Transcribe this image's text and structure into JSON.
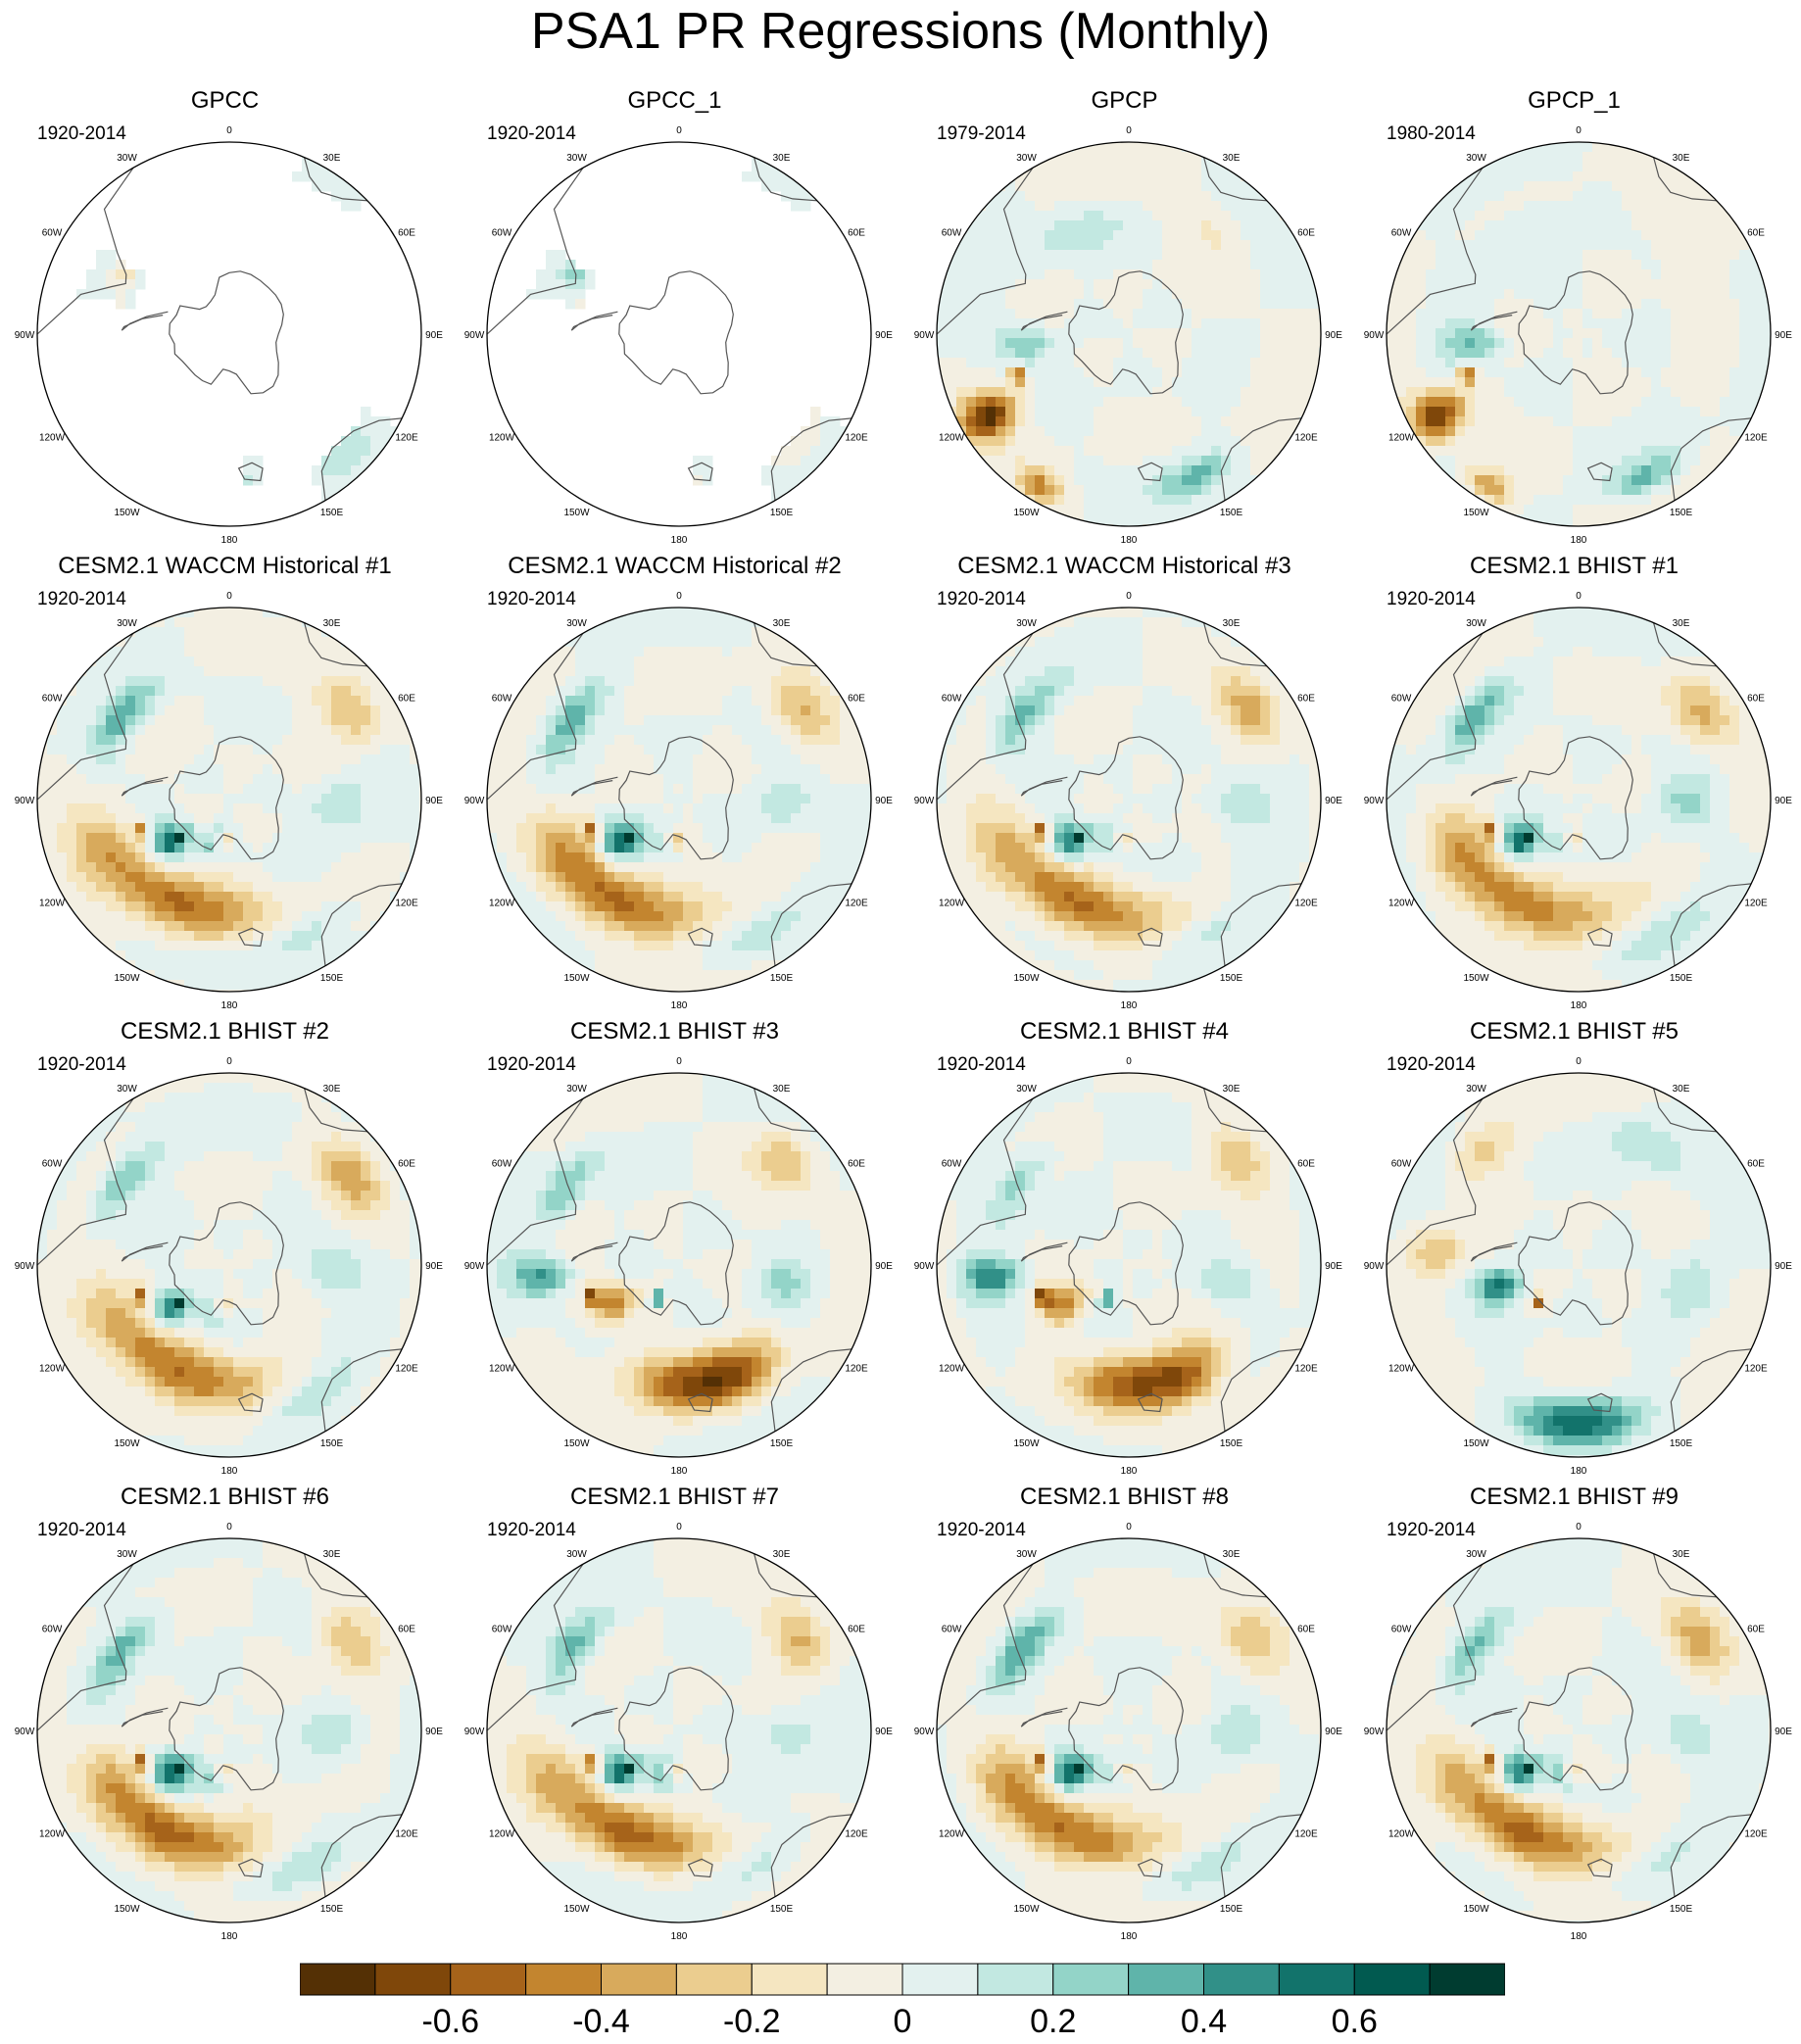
{
  "title": "PSA1 PR Regressions (Monthly)",
  "lon_labels": [
    "0",
    "30E",
    "60E",
    "90E",
    "120E",
    "150E",
    "180",
    "150W",
    "120W",
    "90W",
    "60W",
    "30W"
  ],
  "panels": [
    {
      "title": "GPCC",
      "period": "1920-2014",
      "type": "obs_gpcc"
    },
    {
      "title": "GPCC_1",
      "period": "1920-2014",
      "type": "obs_gpcc1"
    },
    {
      "title": "GPCP",
      "period": "1979-2014",
      "type": "obs_gpcp"
    },
    {
      "title": "GPCP_1",
      "period": "1980-2014",
      "type": "obs_gpcp1"
    },
    {
      "title": "CESM2.1 WACCM Historical #1",
      "period": "1920-2014",
      "type": "model"
    },
    {
      "title": "CESM2.1 WACCM Historical #2",
      "period": "1920-2014",
      "type": "model"
    },
    {
      "title": "CESM2.1 WACCM Historical #3",
      "period": "1920-2014",
      "type": "model"
    },
    {
      "title": "CESM2.1 BHIST #1",
      "period": "1920-2014",
      "type": "model"
    },
    {
      "title": "CESM2.1 BHIST #2",
      "period": "1920-2014",
      "type": "model"
    },
    {
      "title": "CESM2.1 BHIST #3",
      "period": "1920-2014",
      "type": "model_b3"
    },
    {
      "title": "CESM2.1 BHIST #4",
      "period": "1920-2014",
      "type": "model_b3"
    },
    {
      "title": "CESM2.1 BHIST #5",
      "period": "1920-2014",
      "type": "model_b5"
    },
    {
      "title": "CESM2.1 BHIST #6",
      "period": "1920-2014",
      "type": "model"
    },
    {
      "title": "CESM2.1 BHIST #7",
      "period": "1920-2014",
      "type": "model"
    },
    {
      "title": "CESM2.1 BHIST #8",
      "period": "1920-2014",
      "type": "model"
    },
    {
      "title": "CESM2.1 BHIST #9",
      "period": "1920-2014",
      "type": "model"
    }
  ],
  "chart_data": {
    "type": "heatmap",
    "projection": "south polar stereographic",
    "colorbar": {
      "colors": [
        "#543005",
        "#7f470a",
        "#a6631a",
        "#c3852f",
        "#d8aa5c",
        "#ebcd8f",
        "#f5e6c1",
        "#f3efe2",
        "#e3f1ef",
        "#c2e8e1",
        "#93d4c8",
        "#5fb4aa",
        "#319088",
        "#12736b",
        "#015a50",
        "#003c30"
      ],
      "tick_labels": [
        "-0.6",
        "-0.4",
        "-0.2",
        "0",
        "0.2",
        "0.4",
        "0.6"
      ],
      "tick_values": [
        -0.6,
        -0.4,
        -0.2,
        0,
        0.2,
        0.4,
        0.6
      ],
      "range": [
        -0.8,
        0.8
      ]
    }
  }
}
